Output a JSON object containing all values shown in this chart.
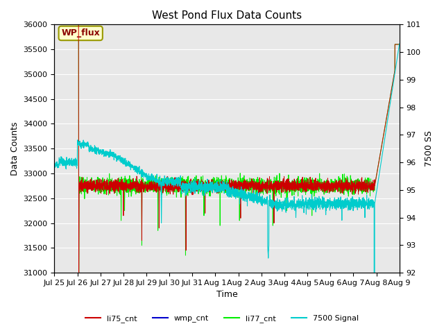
{
  "title": "West Pond Flux Data Counts",
  "xlabel": "Time",
  "ylabel_left": "Data Counts",
  "ylabel_right": "7500 SS",
  "ylim_left": [
    31000,
    36000
  ],
  "ylim_right": [
    92.0,
    101.0
  ],
  "yticks_left": [
    31000,
    31500,
    32000,
    32500,
    33000,
    33500,
    34000,
    34500,
    35000,
    35500,
    36000
  ],
  "yticks_right": [
    92.0,
    93.0,
    94.0,
    95.0,
    96.0,
    97.0,
    98.0,
    99.0,
    100.0,
    101.0
  ],
  "bg_color": "#e8e8e8",
  "annotation_text": "WP_flux",
  "annotation_color": "#8b0000",
  "annotation_bg": "#ffffcc",
  "annotation_border": "#999900",
  "legend_entries": [
    "li75_cnt",
    "wmp_cnt",
    "li77_cnt",
    "7500 Signal"
  ],
  "legend_colors": [
    "#cc0000",
    "#0000cc",
    "#00ee00",
    "#00cccc"
  ],
  "line_colors": {
    "li75": "#cc0000",
    "wmp": "#0000cc",
    "li77": "#00ee00",
    "signal": "#00cccc"
  },
  "n_points": 3000,
  "seed": 42,
  "x_start_days": 0,
  "x_end_days": 15.0,
  "xtick_positions": [
    0,
    1,
    2,
    3,
    4,
    5,
    6,
    7,
    8,
    9,
    10,
    11,
    12,
    13,
    14,
    15
  ],
  "xtick_labels": [
    "Jul 25",
    "Jul 26",
    "Jul 27",
    "Jul 28",
    "Jul 29",
    "Jul 30",
    "Jul 31",
    "Aug 1",
    "Aug 2",
    "Aug 3",
    "Aug 4",
    "Aug 5",
    "Aug 6",
    "Aug 7",
    "Aug 8",
    "Aug 9"
  ]
}
